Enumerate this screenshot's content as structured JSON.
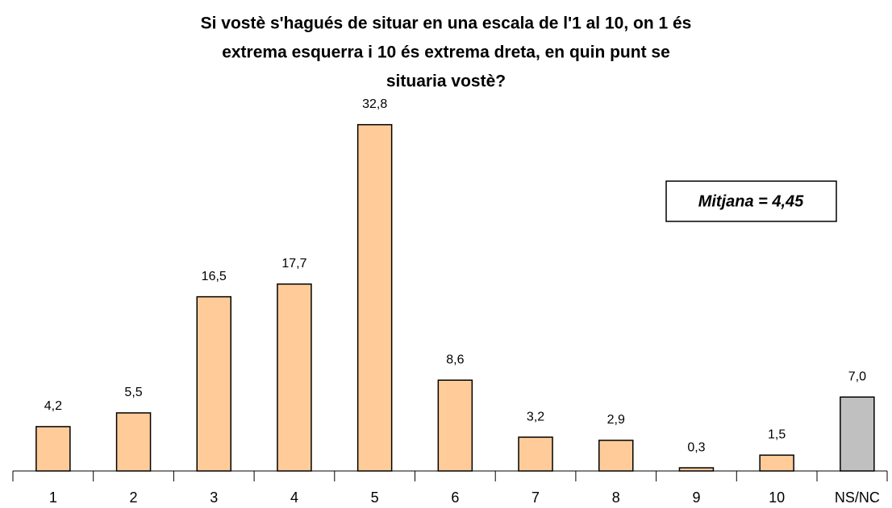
{
  "chart_data": {
    "type": "bar",
    "title": [
      "Si vostè s'hagués de situar en una escala de l'1 al 10, on 1 és",
      "extrema esquerra i 10 és extrema dreta, en quin punt se",
      "situaria vostè?"
    ],
    "categories": [
      "1",
      "2",
      "3",
      "4",
      "5",
      "6",
      "7",
      "8",
      "9",
      "10",
      "NS/NC"
    ],
    "values": [
      4.2,
      5.5,
      16.5,
      17.7,
      32.8,
      8.6,
      3.2,
      2.9,
      0.3,
      1.5,
      7.0
    ],
    "value_labels": [
      "4,2",
      "5,5",
      "16,5",
      "17,7",
      "32,8",
      "8,6",
      "3,2",
      "2,9",
      "0,3",
      "1,5",
      "7,0"
    ],
    "colors": [
      "#ffcc99",
      "#ffcc99",
      "#ffcc99",
      "#ffcc99",
      "#ffcc99",
      "#ffcc99",
      "#ffcc99",
      "#ffcc99",
      "#ffcc99",
      "#ffcc99",
      "#c0c0c0"
    ],
    "ylim": [
      0,
      35
    ],
    "annotation": "Mitjana = 4,45"
  }
}
